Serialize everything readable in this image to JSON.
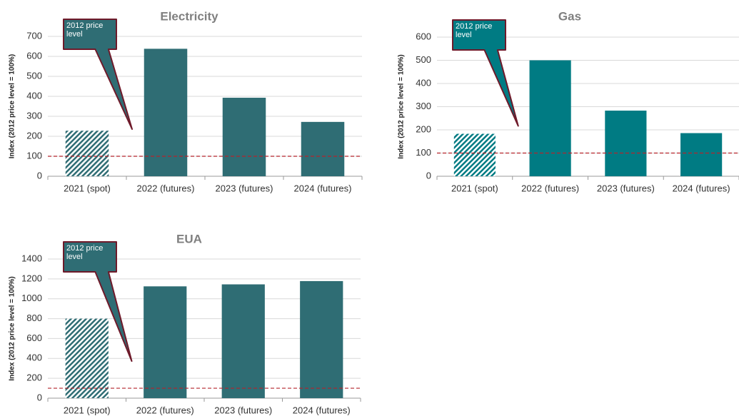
{
  "chart_data": [
    {
      "type": "bar",
      "title": "Electricity",
      "ylabel": "Index (2012 price level = 100%)",
      "categories": [
        "2021 (spot)",
        "2022 (futures)",
        "2023 (futures)",
        "2024 (futures)"
      ],
      "values": [
        228,
        638,
        393,
        272
      ],
      "hatch": [
        true,
        false,
        false,
        false
      ],
      "color": "#2f6d74",
      "ylim": [
        0,
        700
      ],
      "yticks": [
        0,
        100,
        200,
        300,
        400,
        500,
        600,
        700
      ],
      "grid": true,
      "reference_line": 100,
      "annotation": "2012 price level"
    },
    {
      "type": "bar",
      "title": "Gas",
      "ylabel": "Index (2012 price level = 100%)",
      "categories": [
        "2021 (spot)",
        "2022 (futures)",
        "2023 (futures)",
        "2024 (futures)"
      ],
      "values": [
        183,
        500,
        283,
        186
      ],
      "hatch": [
        true,
        false,
        false,
        false
      ],
      "color": "#007b83",
      "ylim": [
        0,
        600
      ],
      "yticks": [
        0,
        100,
        200,
        300,
        400,
        500,
        600
      ],
      "grid": true,
      "reference_line": 100,
      "annotation": "2012 price level"
    },
    {
      "type": "bar",
      "title": "EUA",
      "ylabel": "Index (2012 price level = 100%)",
      "categories": [
        "2021 (spot)",
        "2022 (futures)",
        "2023 (futures)",
        "2024 (futures)"
      ],
      "values": [
        800,
        1125,
        1145,
        1178
      ],
      "hatch": [
        true,
        false,
        false,
        false
      ],
      "color": "#2f6d74",
      "ylim": [
        0,
        1400
      ],
      "yticks": [
        0,
        200,
        400,
        600,
        800,
        1000,
        1200,
        1400
      ],
      "grid": true,
      "reference_line": 100,
      "annotation": "2012 price level"
    }
  ]
}
